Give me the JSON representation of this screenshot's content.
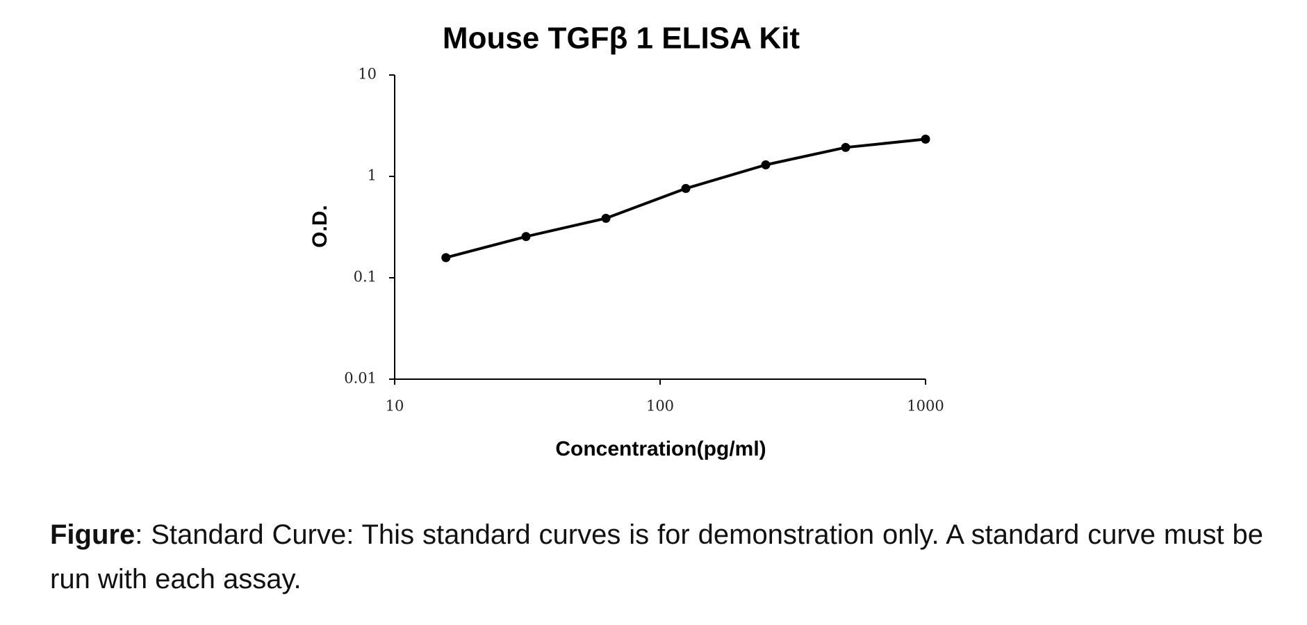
{
  "chart_data": {
    "type": "line",
    "title": "Mouse TGFβ 1 ELISA Kit",
    "x_label": "Concentration(pg/ml)",
    "y_label": "O.D.",
    "x": [
      15.6,
      31.25,
      62.5,
      125,
      250,
      500,
      1000
    ],
    "series": [
      {
        "color": "#000000",
        "values": [
          0.158,
          0.255,
          0.386,
          0.76,
          1.3,
          1.93,
          2.33
        ]
      }
    ],
    "xlim": [
      10,
      1000
    ],
    "ylim": [
      0.01,
      10
    ],
    "xticks": [
      10,
      100,
      1000
    ],
    "yticks": [
      0.01,
      0.1,
      1,
      10
    ],
    "xscale": "log",
    "yscale": "log",
    "grid": false
  },
  "caption": {
    "label": "Figure",
    "text": ": Standard Curve: This standard curves is for demonstration only. A standard curve must be run with each assay."
  }
}
